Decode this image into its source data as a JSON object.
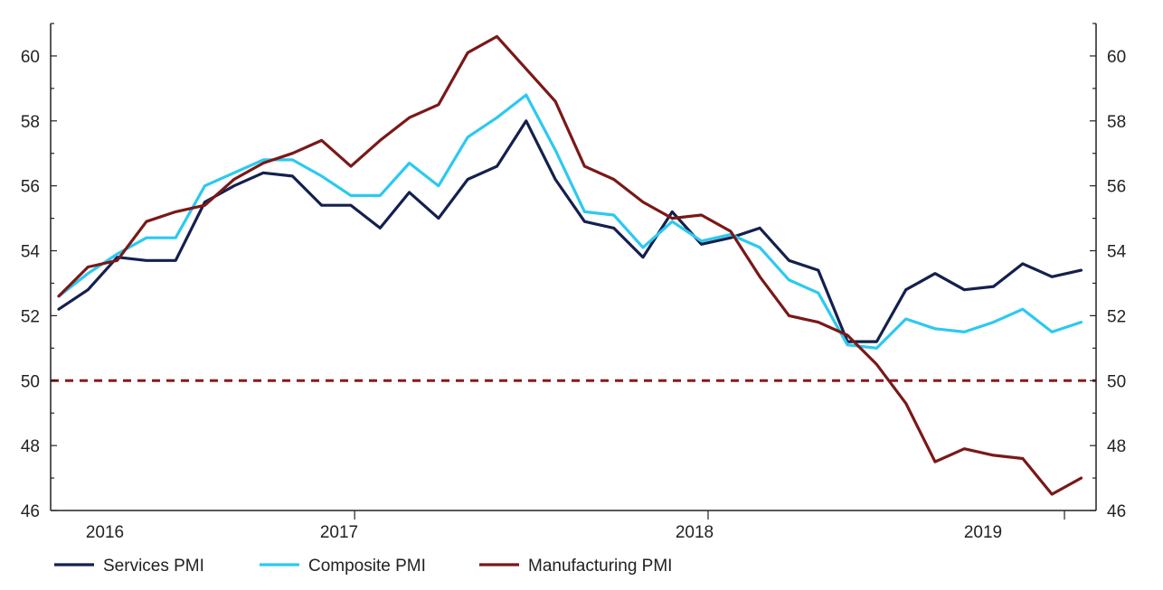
{
  "chart_data": {
    "type": "line",
    "title": "",
    "xlabel": "",
    "ylabel": "",
    "ylim": [
      46,
      61
    ],
    "yticks": [
      46,
      48,
      50,
      52,
      54,
      56,
      58,
      60
    ],
    "dual_y_axis": true,
    "grid": false,
    "legend_position": "bottom-left",
    "reference_line": {
      "y": 50,
      "style": "dashed",
      "color": "#8B1A1A"
    },
    "x_year_labels": [
      "2016",
      "2017",
      "2018",
      "2019"
    ],
    "x_start": "2016-02",
    "frequency": "monthly",
    "series": [
      {
        "name": "Services PMI",
        "color": "#14204E",
        "values": [
          52.2,
          52.8,
          53.8,
          53.7,
          53.7,
          55.5,
          56.0,
          56.4,
          56.3,
          55.4,
          55.4,
          54.7,
          55.8,
          55.0,
          56.2,
          56.6,
          58.0,
          56.2,
          54.9,
          54.7,
          53.8,
          55.2,
          54.2,
          54.4,
          54.7,
          53.7,
          53.4,
          51.2,
          51.2,
          52.8,
          53.3,
          52.8,
          52.9,
          53.6,
          53.2,
          53.4
        ]
      },
      {
        "name": "Composite PMI",
        "color": "#2CC9F0",
        "values": [
          52.6,
          53.3,
          53.9,
          54.4,
          54.4,
          56.0,
          56.4,
          56.8,
          56.8,
          56.3,
          55.7,
          55.7,
          56.7,
          56.0,
          57.5,
          58.1,
          58.8,
          57.1,
          55.2,
          55.1,
          54.1,
          54.9,
          54.3,
          54.5,
          54.1,
          53.1,
          52.7,
          51.1,
          51.0,
          51.9,
          51.6,
          51.5,
          51.8,
          52.2,
          51.5,
          51.8
        ]
      },
      {
        "name": "Manufacturing PMI",
        "color": "#7A1818",
        "values": [
          52.6,
          53.5,
          53.7,
          54.9,
          55.2,
          55.4,
          56.2,
          56.7,
          57.0,
          57.4,
          56.6,
          57.4,
          58.1,
          58.5,
          60.1,
          60.6,
          59.6,
          58.6,
          56.6,
          56.2,
          55.5,
          55.0,
          55.1,
          54.6,
          53.2,
          52.0,
          51.8,
          51.4,
          50.5,
          49.3,
          47.5,
          47.9,
          47.7,
          47.6,
          46.5,
          47.0
        ]
      }
    ]
  }
}
